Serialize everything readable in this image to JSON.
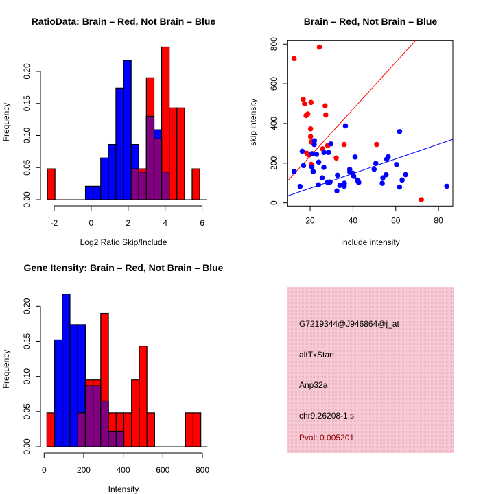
{
  "colors": {
    "brain": "#ff0000",
    "not_brain": "#0000ff",
    "overlap": "#800080",
    "panel": "#f4c3cf",
    "pval": "#8b0000"
  },
  "chart_data": [
    {
      "type": "bar",
      "title": "RatioData: Brain – Red, Not Brain – Blue",
      "xlabel": "Log2 Ratio Skip/Include",
      "ylabel": "Frequency",
      "xlim": [
        -2.6,
        6.3
      ],
      "ylim": [
        0,
        0.24
      ],
      "xticks": [
        "-2",
        "0",
        "2",
        "4",
        "6"
      ],
      "yticks": [
        "0.00",
        "0.05",
        "0.10",
        "0.15",
        "0.20"
      ],
      "bin_start": -2.37,
      "bin_width": 0.412,
      "series": [
        {
          "name": "Not Brain",
          "color": "blue",
          "values": [
            0,
            0,
            0,
            0,
            0,
            0.021,
            0.021,
            0.065,
            0.086,
            0.174,
            0.217,
            0.086,
            0.043,
            0.13,
            0.109,
            0.043,
            0,
            0,
            0,
            0
          ]
        },
        {
          "name": "Brain",
          "color": "red",
          "values": [
            0.048,
            0,
            0,
            0,
            0,
            0,
            0,
            0,
            0,
            0,
            0,
            0.048,
            0.048,
            0.19,
            0.095,
            0.238,
            0.143,
            0.143,
            0,
            0.048
          ]
        }
      ]
    },
    {
      "type": "scatter",
      "title": "Brain – Red, Not Brain – Blue",
      "xlabel": "include intensity",
      "ylabel": "skip intensity",
      "xlim": [
        9.5,
        86.7
      ],
      "ylim": [
        -16,
        817
      ],
      "xticks": [
        "20",
        "40",
        "60",
        "80"
      ],
      "yticks": [
        "0",
        "200",
        "400",
        "600",
        "800"
      ],
      "series": [
        {
          "name": "Brain",
          "color": "red",
          "points": [
            [
              12.5,
              727
            ],
            [
              24.3,
              785
            ],
            [
              16.8,
              522
            ],
            [
              17.4,
              499
            ],
            [
              20.4,
              506
            ],
            [
              18.1,
              440
            ],
            [
              18.9,
              448
            ],
            [
              27.0,
              489
            ],
            [
              27.3,
              443
            ],
            [
              20.2,
              373
            ],
            [
              20.2,
              334
            ],
            [
              20.5,
              307
            ],
            [
              18.4,
              250
            ],
            [
              19.6,
              241
            ],
            [
              25.8,
              272
            ],
            [
              28.2,
              289
            ],
            [
              35.9,
              294
            ],
            [
              32.2,
              226
            ],
            [
              51.1,
              294
            ],
            [
              20.5,
              194
            ],
            [
              72.0,
              16
            ]
          ],
          "fit": {
            "intercept": -1.4,
            "slope": 11.83
          }
        },
        {
          "name": "Not Brain",
          "color": "blue",
          "points": [
            [
              12.5,
              158
            ],
            [
              15.3,
              83
            ],
            [
              16.3,
              260
            ],
            [
              16.9,
              188
            ],
            [
              22.0,
              313
            ],
            [
              21.9,
              294
            ],
            [
              20.9,
              248
            ],
            [
              23.0,
              245
            ],
            [
              20.8,
              181
            ],
            [
              21.4,
              158
            ],
            [
              24.0,
              205
            ],
            [
              26.5,
              254
            ],
            [
              26.4,
              179
            ],
            [
              25.6,
              126
            ],
            [
              23.9,
              91
            ],
            [
              28.6,
              254
            ],
            [
              29.7,
              297
            ],
            [
              36.5,
              388
            ],
            [
              28.1,
              104
            ],
            [
              29.3,
              105
            ],
            [
              32.8,
              139
            ],
            [
              32.5,
              60
            ],
            [
              33.9,
              88
            ],
            [
              36.0,
              99
            ],
            [
              35.9,
              84
            ],
            [
              38.5,
              169
            ],
            [
              38.5,
              157
            ],
            [
              39.8,
              150
            ],
            [
              41.0,
              231
            ],
            [
              40.4,
              134
            ],
            [
              42.0,
              115
            ],
            [
              42.7,
              103
            ],
            [
              49.9,
              169
            ],
            [
              50.7,
              199
            ],
            [
              55.5,
              142
            ],
            [
              54.0,
              126
            ],
            [
              53.7,
              99
            ],
            [
              55.8,
              220
            ],
            [
              56.5,
              232
            ],
            [
              60.4,
              193
            ],
            [
              61.8,
              359
            ],
            [
              61.8,
              80
            ],
            [
              63.0,
              115
            ],
            [
              64.6,
              142
            ],
            [
              83.9,
              84
            ]
          ],
          "fit": {
            "intercept": 0,
            "slope": 3.69
          }
        }
      ]
    },
    {
      "type": "bar",
      "title": "Gene Itensity: Brain – Red, Not Brain – Blue",
      "xlabel": "Intensity",
      "ylabel": "Frequency",
      "xlim": [
        -5,
        805
      ],
      "ylim": [
        0,
        0.22
      ],
      "xticks": [
        "0",
        "200",
        "400",
        "600",
        "800"
      ],
      "yticks": [
        "0.00",
        "0.05",
        "0.10",
        "0.15",
        "0.20"
      ],
      "bin_start": 13.9,
      "bin_width": 38.9,
      "series": [
        {
          "name": "Not Brain",
          "color": "blue",
          "values": [
            0,
            0.152,
            0.217,
            0.174,
            0.174,
            0.087,
            0.087,
            0.065,
            0.022,
            0.022,
            0,
            0,
            0,
            0,
            0,
            0,
            0,
            0,
            0,
            0
          ]
        },
        {
          "name": "Brain",
          "color": "red",
          "values": [
            0.048,
            0,
            0,
            0,
            0.048,
            0.095,
            0.095,
            0.19,
            0.048,
            0.048,
            0.048,
            0.095,
            0.143,
            0.048,
            0,
            0,
            0,
            0,
            0.048,
            0.048
          ]
        }
      ]
    }
  ],
  "info_panel": {
    "probe_id": "G7219344@J946864@j_at",
    "event_type": "altTxStart",
    "gene": "Anp32a",
    "location": "chr9.26208-1.s",
    "pval": "Pval: 0.005201"
  }
}
